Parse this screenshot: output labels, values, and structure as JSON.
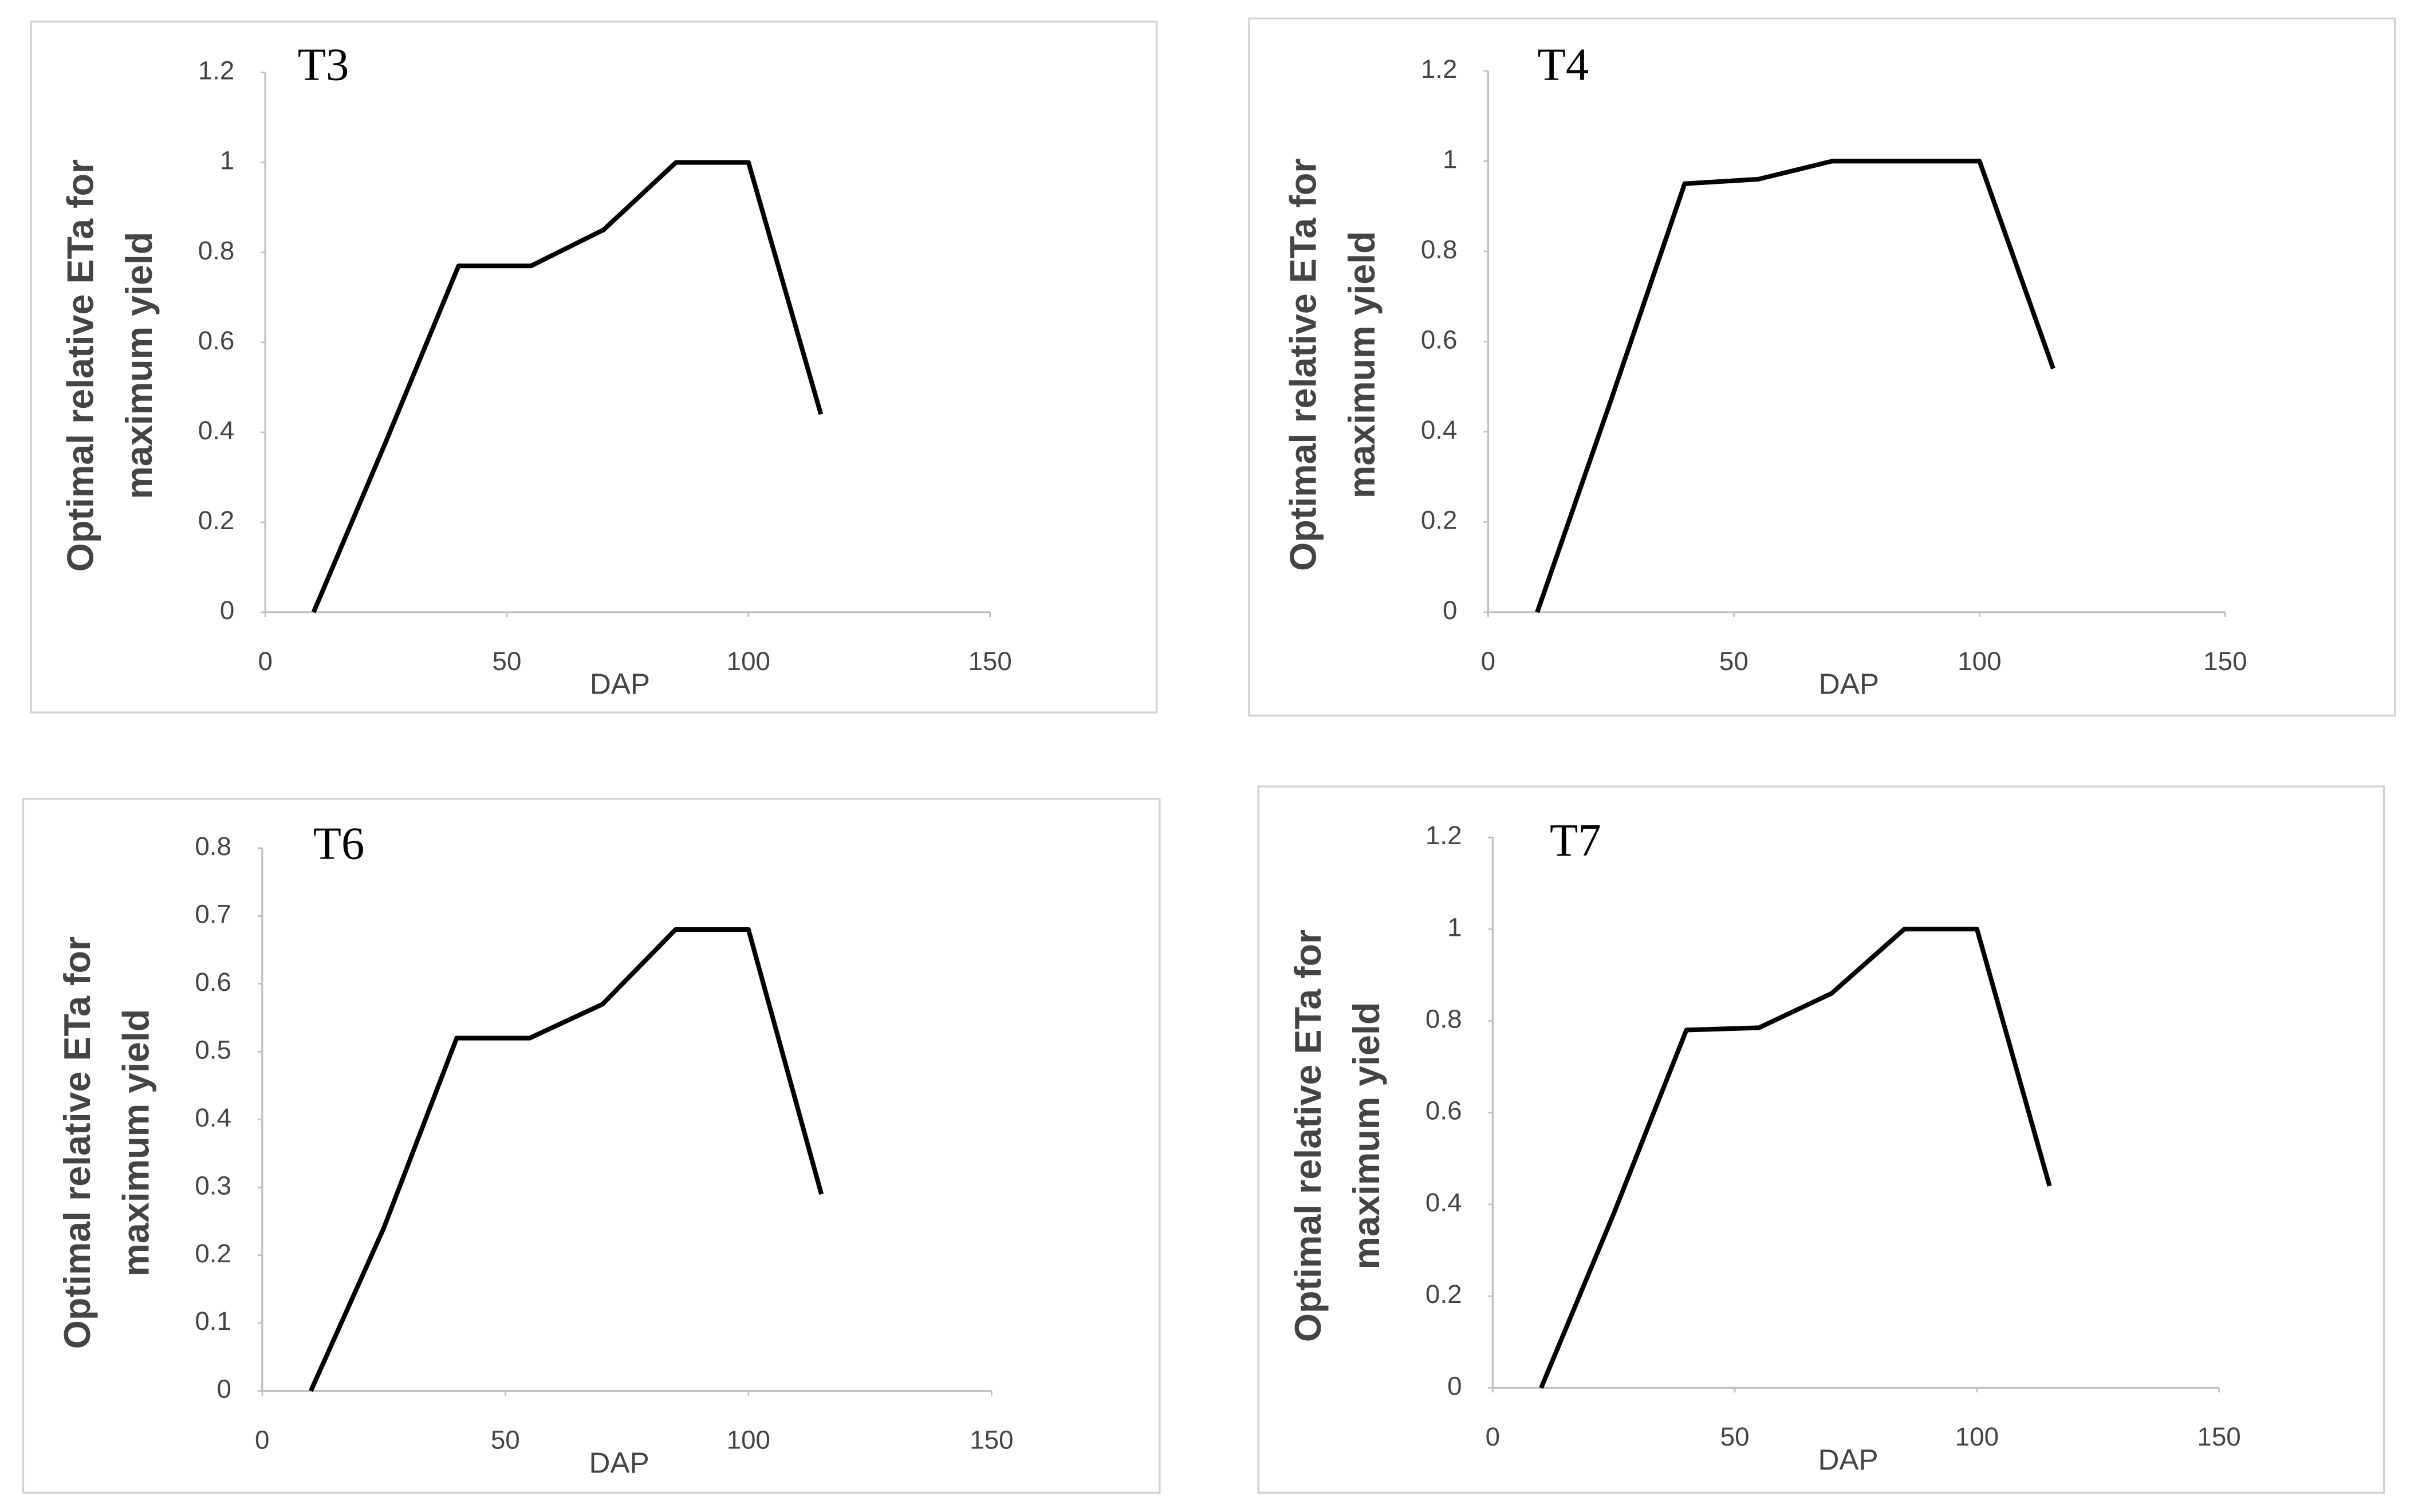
{
  "chart_data": [
    {
      "type": "line",
      "title": "T3",
      "xlabel": "DAP",
      "ylabel": [
        "Optimal relative ETa for",
        "maximum yield"
      ],
      "x": [
        10,
        25,
        40,
        55,
        70,
        85,
        100,
        115
      ],
      "values": [
        0,
        0.38,
        0.77,
        0.77,
        0.85,
        1.0,
        1.0,
        0.44
      ],
      "color": "#000000",
      "xlim": [
        0,
        150
      ],
      "xticks": [
        0,
        50,
        100,
        150
      ],
      "ylim": [
        0,
        1.2
      ],
      "yticks": [
        0,
        0.2,
        0.4,
        0.6,
        0.8,
        1,
        1.2
      ]
    },
    {
      "type": "line",
      "title": "T4",
      "xlabel": "DAP",
      "ylabel": [
        "Optimal relative ETa for",
        "maximum yield"
      ],
      "x": [
        10,
        25,
        40,
        55,
        70,
        85,
        100,
        115
      ],
      "values": [
        0,
        0.47,
        0.95,
        0.96,
        1.0,
        1.0,
        1.0,
        0.54
      ],
      "color": "#000000",
      "xlim": [
        0,
        150
      ],
      "xticks": [
        0,
        50,
        100,
        150
      ],
      "ylim": [
        0,
        1.2
      ],
      "yticks": [
        0,
        0.2,
        0.4,
        0.6,
        0.8,
        1,
        1.2
      ]
    },
    {
      "type": "line",
      "title": "T6",
      "xlabel": "DAP",
      "ylabel": [
        "Optimal relative ETa for",
        "maximum yield"
      ],
      "x": [
        10,
        25,
        40,
        55,
        70,
        85,
        100,
        115
      ],
      "values": [
        0,
        0.24,
        0.52,
        0.52,
        0.57,
        0.68,
        0.68,
        0.29
      ],
      "color": "#000000",
      "xlim": [
        0,
        150
      ],
      "xticks": [
        0,
        50,
        100,
        150
      ],
      "ylim": [
        0,
        0.8
      ],
      "yticks": [
        0,
        0.1,
        0.2,
        0.3,
        0.4,
        0.5,
        0.6,
        0.7,
        0.8
      ]
    },
    {
      "type": "line",
      "title": "T7",
      "xlabel": "DAP",
      "ylabel": [
        "Optimal relative ETa for",
        "maximum yield"
      ],
      "x": [
        10,
        25,
        40,
        55,
        70,
        85,
        100,
        115
      ],
      "values": [
        0,
        0.38,
        0.78,
        0.785,
        0.86,
        1.0,
        1.0,
        0.44
      ],
      "color": "#000000",
      "xlim": [
        0,
        150
      ],
      "xticks": [
        0,
        50,
        100,
        150
      ],
      "ylim": [
        0,
        1.2
      ],
      "yticks": [
        0,
        0.2,
        0.4,
        0.6,
        0.8,
        1,
        1.2
      ]
    }
  ]
}
